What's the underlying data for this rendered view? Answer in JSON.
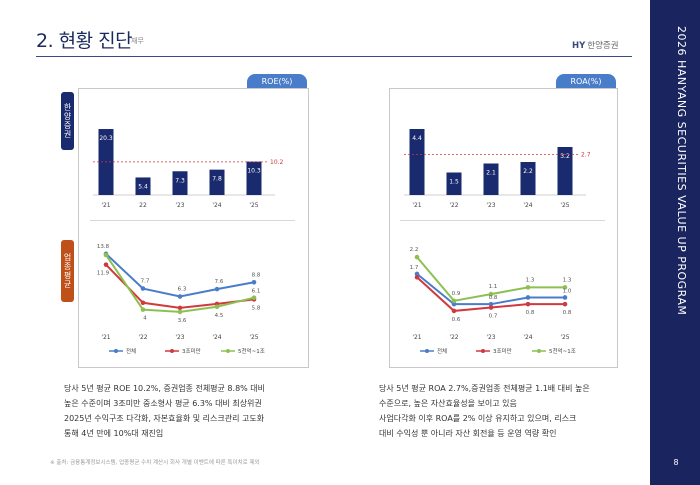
{
  "header": {
    "title": "2. 현황 진단",
    "subtitle": "재무",
    "logo": "HY",
    "logo_sub": "한양증권"
  },
  "sidebar": {
    "vertical_text": "2026 HANYANG SECURITIES VALUE UP PROGRAM",
    "page_number": "8"
  },
  "side_tabs": {
    "company": "한양증권",
    "industry": "업종평균"
  },
  "legend": {
    "all": "전체",
    "small": "3조미만",
    "mid": "5천억~1조"
  },
  "left_panel": {
    "pill": "ROE(%)",
    "description_lines": [
      "당사 5년 평균 ROE 10.2%, 증권업종 전체평균 8.8% 대비",
      "높은 수준이며 3조미만 중소형사 평균 6.3% 대비 최상위권",
      "2025년 수익구조 다각화, 자본효율화 및 리스크관리 고도화",
      "통해 4년 만에 10%대 재진입"
    ]
  },
  "right_panel": {
    "pill": "ROA(%)",
    "description_lines": [
      "당사 5년 평균 ROA 2.7%,증권업종 전체평균 1.1배 대비 높은",
      "수준으로, 높은 자산효율성을 보이고 있음",
      "사업다각화 이후 ROA를 2% 이상 유지하고 있으며, 리스크",
      "대비 수익성 뿐 아니라 자산 회전율 등 운영 역량 확인"
    ]
  },
  "footnote": "※ 출처: 금융통계정보시스템, 업종평균 수치 계산시 회사 개별 이벤트에 따른 특이치로 제외",
  "colors": {
    "navy": "#1a2a6e",
    "all": "#4a7dc9",
    "small": "#d0393e",
    "mid": "#8cc152",
    "avg_line": "#d0393e"
  },
  "chart_data": [
    {
      "id": "roe_company",
      "type": "bar",
      "title": "ROE(%)",
      "categories": [
        "'21",
        "22",
        "'23",
        "'24",
        "'25"
      ],
      "values": [
        20.3,
        5.4,
        7.3,
        7.8,
        10.3
      ],
      "value_labels": [
        "20.3",
        "5.4",
        "7.3",
        "7.8",
        "10.3"
      ],
      "average": 10.2,
      "average_label": "10.2",
      "ylim": [
        0,
        24
      ]
    },
    {
      "id": "roe_industry",
      "type": "line",
      "categories": [
        "'21",
        "'22",
        "'23",
        "'24",
        "'25"
      ],
      "ylim": [
        2,
        15
      ],
      "series": [
        {
          "name": "전체",
          "key": "all",
          "values": [
            13.8,
            7.7,
            6.3,
            7.6,
            8.8
          ],
          "labels": [
            "13.8",
            "7.7",
            "6.3",
            "7.6",
            "8.8"
          ]
        },
        {
          "name": "3조미만",
          "key": "small",
          "values": [
            11.9,
            5.2,
            4.3,
            5.0,
            5.8
          ],
          "labels": [
            "11.9",
            "",
            "",
            "",
            "5.8"
          ]
        },
        {
          "name": "5천억~1조",
          "key": "mid",
          "values": [
            13.6,
            4.0,
            3.6,
            4.5,
            6.1
          ],
          "labels": [
            "",
            "4",
            "3.6",
            "4.5",
            "6.1"
          ]
        }
      ]
    },
    {
      "id": "roa_company",
      "type": "bar",
      "title": "ROA(%)",
      "categories": [
        "'21",
        "'22",
        "'23",
        "'24",
        "'25"
      ],
      "values": [
        4.4,
        1.5,
        2.1,
        2.2,
        3.2
      ],
      "value_labels": [
        "4.4",
        "1.5",
        "2.1",
        "2.2",
        "3.2"
      ],
      "average": 2.7,
      "average_label": "2.7",
      "ylim": [
        0,
        5.2
      ]
    },
    {
      "id": "roa_industry",
      "type": "line",
      "categories": [
        "'21",
        "'22",
        "'23",
        "'24",
        "'25"
      ],
      "ylim": [
        0.3,
        2.5
      ],
      "series": [
        {
          "name": "전체",
          "key": "all",
          "values": [
            1.7,
            0.8,
            0.8,
            1.0,
            1.0
          ],
          "labels": [
            "1.7",
            "",
            "0.8",
            "",
            "1.0"
          ]
        },
        {
          "name": "3조미만",
          "key": "small",
          "values": [
            1.6,
            0.6,
            0.7,
            0.8,
            0.8
          ],
          "labels": [
            "",
            "0.6",
            "0.7",
            "0.8",
            "0.8"
          ]
        },
        {
          "name": "5천억~1조",
          "key": "mid",
          "values": [
            2.2,
            0.9,
            1.1,
            1.3,
            1.3
          ],
          "labels": [
            "2.2",
            "0.9",
            "1.1",
            "1.3",
            "1.3"
          ]
        }
      ]
    }
  ]
}
